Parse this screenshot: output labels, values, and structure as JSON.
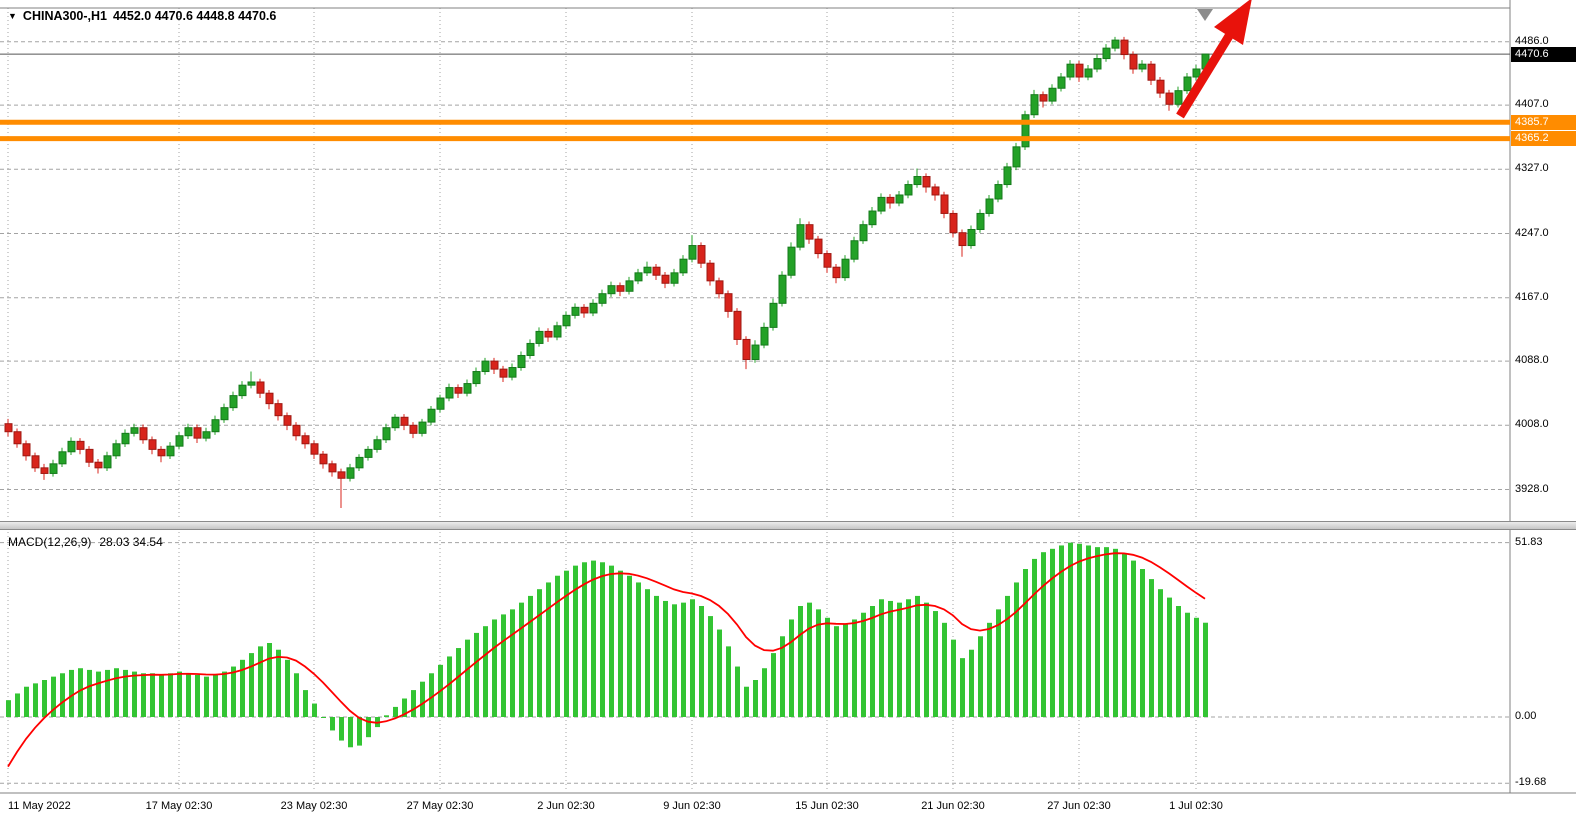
{
  "icons": {
    "symbol_dropdown": "▼"
  },
  "colors": {
    "background": "#FFFFFF",
    "bull": "#23A127",
    "bull_border": "#157A1B",
    "bear": "#D8241C",
    "bear_border": "#9E1812",
    "histogram": "#33C433",
    "signal_line": "#FF0000",
    "level_line": "#FF8C00",
    "grid": "#A3A3A3",
    "frame": "#808080",
    "current_price_tag_bg": "#000000",
    "tag_text": "#FFFFFF",
    "arrow": "#E8120B",
    "shift_marker": "#8C8C8C",
    "text": "#000000"
  },
  "chart_data": [
    {
      "type": "candlestick",
      "symbol_label": "CHINA300-,H1",
      "ohlc_label": "4452.0 4470.6 4448.8 4470.6",
      "open": 4452.0,
      "high": 4470.6,
      "low": 4448.8,
      "close": 4470.6,
      "ylim": [
        3890,
        4528
      ],
      "grid": "on",
      "y_axis_labels": [
        "4486.0",
        "4407.0",
        "4327.0",
        "4247.0",
        "4167.0",
        "4088.0",
        "4008.0",
        "3928.0"
      ],
      "current_price": {
        "value": 4470.6,
        "label": "4470.6"
      },
      "horizontal_lines": [
        {
          "value": 4385.7,
          "label": "4385.7"
        },
        {
          "value": 4365.2,
          "label": "4365.2"
        }
      ],
      "x_ticks": [
        {
          "i": 0,
          "label": "11 May 2022"
        },
        {
          "i": 19,
          "label": "17 May 02:30"
        },
        {
          "i": 34,
          "label": "23 May 02:30"
        },
        {
          "i": 48,
          "label": "27 May 02:30"
        },
        {
          "i": 62,
          "label": "2 Jun 02:30"
        },
        {
          "i": 76,
          "label": "9 Jun 02:30"
        },
        {
          "i": 91,
          "label": "15 Jun 02:30"
        },
        {
          "i": 105,
          "label": "21 Jun 02:30"
        },
        {
          "i": 119,
          "label": "27 Jun 02:30"
        },
        {
          "i": 132,
          "label": "1 Jul 02:30"
        }
      ],
      "candles_ohlc": [
        [
          4010,
          4016,
          3994,
          4000
        ],
        [
          4000,
          4004,
          3980,
          3985
        ],
        [
          3985,
          3989,
          3964,
          3970
        ],
        [
          3970,
          3974,
          3950,
          3955
        ],
        [
          3955,
          3960,
          3940,
          3948
        ],
        [
          3948,
          3965,
          3944,
          3960
        ],
        [
          3960,
          3980,
          3956,
          3975
        ],
        [
          3975,
          3993,
          3971,
          3988
        ],
        [
          3988,
          3992,
          3972,
          3978
        ],
        [
          3978,
          3982,
          3956,
          3962
        ],
        [
          3962,
          3966,
          3948,
          3955
        ],
        [
          3955,
          3975,
          3951,
          3970
        ],
        [
          3970,
          3990,
          3966,
          3985
        ],
        [
          3985,
          4003,
          3981,
          3998
        ],
        [
          3998,
          4010,
          3994,
          4005
        ],
        [
          4005,
          4009,
          3985,
          3990
        ],
        [
          3990,
          3994,
          3972,
          3978
        ],
        [
          3978,
          3982,
          3962,
          3970
        ],
        [
          3970,
          3987,
          3966,
          3982
        ],
        [
          3982,
          4000,
          3978,
          3995
        ],
        [
          3995,
          4010,
          3991,
          4005
        ],
        [
          4005,
          4009,
          3986,
          3992
        ],
        [
          3992,
          4005,
          3988,
          4000
        ],
        [
          4000,
          4020,
          3996,
          4015
        ],
        [
          4015,
          4035,
          4011,
          4030
        ],
        [
          4030,
          4050,
          4026,
          4045
        ],
        [
          4045,
          4063,
          4041,
          4058
        ],
        [
          4058,
          4075,
          4054,
          4062
        ],
        [
          4062,
          4066,
          4042,
          4048
        ],
        [
          4048,
          4052,
          4028,
          4035
        ],
        [
          4035,
          4040,
          4014,
          4020
        ],
        [
          4020,
          4024,
          4002,
          4008
        ],
        [
          4008,
          4012,
          3989,
          3995
        ],
        [
          3995,
          3999,
          3979,
          3985
        ],
        [
          3985,
          3989,
          3966,
          3972
        ],
        [
          3972,
          3976,
          3954,
          3960
        ],
        [
          3960,
          3964,
          3944,
          3950
        ],
        [
          3950,
          3954,
          3905,
          3942
        ],
        [
          3942,
          3960,
          3938,
          3955
        ],
        [
          3955,
          3972,
          3951,
          3968
        ],
        [
          3968,
          3982,
          3964,
          3978
        ],
        [
          3978,
          3995,
          3974,
          3990
        ],
        [
          3990,
          4010,
          3986,
          4005
        ],
        [
          4005,
          4022,
          4001,
          4018
        ],
        [
          4018,
          4022,
          4002,
          4008
        ],
        [
          4008,
          4012,
          3992,
          3998
        ],
        [
          3998,
          4016,
          3994,
          4012
        ],
        [
          4012,
          4032,
          4008,
          4028
        ],
        [
          4028,
          4046,
          4024,
          4042
        ],
        [
          4042,
          4060,
          4038,
          4055
        ],
        [
          4055,
          4059,
          4042,
          4048
        ],
        [
          4048,
          4065,
          4044,
          4060
        ],
        [
          4060,
          4080,
          4056,
          4075
        ],
        [
          4075,
          4092,
          4071,
          4088
        ],
        [
          4088,
          4092,
          4072,
          4078
        ],
        [
          4078,
          4082,
          4062,
          4068
        ],
        [
          4068,
          4085,
          4064,
          4080
        ],
        [
          4080,
          4100,
          4076,
          4095
        ],
        [
          4095,
          4115,
          4091,
          4110
        ],
        [
          4110,
          4130,
          4106,
          4125
        ],
        [
          4125,
          4129,
          4112,
          4118
        ],
        [
          4118,
          4137,
          4114,
          4132
        ],
        [
          4132,
          4150,
          4128,
          4145
        ],
        [
          4145,
          4160,
          4141,
          4155
        ],
        [
          4155,
          4159,
          4142,
          4148
        ],
        [
          4148,
          4165,
          4144,
          4160
        ],
        [
          4160,
          4177,
          4156,
          4172
        ],
        [
          4172,
          4187,
          4168,
          4182
        ],
        [
          4182,
          4186,
          4169,
          4175
        ],
        [
          4175,
          4193,
          4171,
          4188
        ],
        [
          4188,
          4203,
          4184,
          4198
        ],
        [
          4198,
          4212,
          4194,
          4205
        ],
        [
          4205,
          4209,
          4189,
          4195
        ],
        [
          4195,
          4199,
          4179,
          4185
        ],
        [
          4185,
          4203,
          4181,
          4198
        ],
        [
          4198,
          4220,
          4194,
          4215
        ],
        [
          4215,
          4245,
          4211,
          4232
        ],
        [
          4232,
          4236,
          4204,
          4210
        ],
        [
          4210,
          4214,
          4182,
          4188
        ],
        [
          4188,
          4192,
          4166,
          4172
        ],
        [
          4172,
          4176,
          4142,
          4150
        ],
        [
          4150,
          4154,
          4108,
          4115
        ],
        [
          4115,
          4119,
          4078,
          4090
        ],
        [
          4090,
          4114,
          4086,
          4108
        ],
        [
          4108,
          4136,
          4104,
          4130
        ],
        [
          4130,
          4166,
          4126,
          4160
        ],
        [
          4160,
          4200,
          4156,
          4195
        ],
        [
          4195,
          4236,
          4191,
          4230
        ],
        [
          4230,
          4266,
          4226,
          4258
        ],
        [
          4258,
          4262,
          4234,
          4240
        ],
        [
          4240,
          4244,
          4216,
          4222
        ],
        [
          4222,
          4226,
          4198,
          4205
        ],
        [
          4205,
          4209,
          4185,
          4192
        ],
        [
          4192,
          4220,
          4188,
          4215
        ],
        [
          4215,
          4243,
          4211,
          4238
        ],
        [
          4238,
          4263,
          4234,
          4258
        ],
        [
          4258,
          4280,
          4254,
          4275
        ],
        [
          4275,
          4297,
          4271,
          4292
        ],
        [
          4292,
          4296,
          4278,
          4285
        ],
        [
          4285,
          4300,
          4281,
          4295
        ],
        [
          4295,
          4313,
          4291,
          4308
        ],
        [
          4308,
          4328,
          4304,
          4318
        ],
        [
          4318,
          4322,
          4298,
          4305
        ],
        [
          4305,
          4309,
          4288,
          4295
        ],
        [
          4295,
          4299,
          4266,
          4272
        ],
        [
          4272,
          4276,
          4242,
          4248
        ],
        [
          4248,
          4252,
          4218,
          4232
        ],
        [
          4232,
          4257,
          4228,
          4252
        ],
        [
          4252,
          4277,
          4248,
          4272
        ],
        [
          4272,
          4295,
          4268,
          4290
        ],
        [
          4290,
          4313,
          4286,
          4308
        ],
        [
          4308,
          4335,
          4304,
          4330
        ],
        [
          4330,
          4360,
          4326,
          4355
        ],
        [
          4355,
          4400,
          4351,
          4395
        ],
        [
          4395,
          4426,
          4391,
          4420
        ],
        [
          4420,
          4424,
          4404,
          4412
        ],
        [
          4412,
          4433,
          4408,
          4428
        ],
        [
          4428,
          4447,
          4424,
          4442
        ],
        [
          4442,
          4463,
          4438,
          4458
        ],
        [
          4458,
          4462,
          4436,
          4442
        ],
        [
          4442,
          4457,
          4438,
          4452
        ],
        [
          4452,
          4470,
          4448,
          4465
        ],
        [
          4465,
          4483,
          4461,
          4478
        ],
        [
          4478,
          4492,
          4474,
          4488
        ],
        [
          4488,
          4492,
          4464,
          4470
        ],
        [
          4470,
          4474,
          4446,
          4452
        ],
        [
          4452,
          4463,
          4448,
          4458
        ],
        [
          4458,
          4462,
          4432,
          4438
        ],
        [
          4438,
          4442,
          4416,
          4422
        ],
        [
          4422,
          4426,
          4400,
          4408
        ],
        [
          4408,
          4430,
          4404,
          4425
        ],
        [
          4425,
          4447,
          4421,
          4442
        ],
        [
          4442,
          4457,
          4438,
          4452
        ],
        [
          4452,
          4470.6,
          4448.8,
          4470.6
        ]
      ]
    },
    {
      "type": "bar",
      "name_label": "MACD(12,26,9)",
      "values_label": "28.03 34.54",
      "macd_value": 28.03,
      "signal_value": 34.54,
      "ylim": [
        -22,
        55
      ],
      "y_axis_labels": [
        "51.83",
        "0.00",
        "-19.68"
      ],
      "signal_period": 9,
      "signal_seed": -19.68,
      "histogram": [
        5,
        7,
        9,
        10,
        11,
        12,
        13,
        14,
        14.5,
        14,
        13.5,
        14,
        14.5,
        14,
        13.5,
        13,
        13,
        12.5,
        13,
        13.5,
        13,
        12.5,
        12,
        12.5,
        13.5,
        15,
        17,
        19,
        21,
        22,
        20,
        17,
        13,
        8,
        4,
        0,
        -4,
        -7,
        -9,
        -8.5,
        -6,
        -3,
        0.5,
        3,
        5.5,
        8,
        10.5,
        13,
        15.5,
        18,
        20.5,
        23,
        25,
        27,
        29,
        30.5,
        32,
        34,
        36,
        38,
        40,
        42,
        43.5,
        45,
        46,
        46.5,
        46,
        45,
        43.5,
        42,
        40,
        38,
        36,
        34.5,
        33.5,
        34,
        35,
        33,
        30,
        26,
        21,
        15,
        9,
        11,
        14.5,
        19,
        24,
        29,
        33,
        34,
        32,
        29.5,
        27,
        27.5,
        29,
        31,
        33,
        35,
        34.5,
        34,
        35,
        36,
        34,
        31.5,
        28,
        23,
        17.5,
        20,
        24,
        28,
        32,
        36,
        40,
        44,
        47,
        49,
        50,
        51,
        51.83,
        51.5,
        51,
        50.5,
        50.5,
        50,
        48.5,
        46.5,
        44,
        41,
        38,
        35.5,
        33,
        31,
        29.5,
        28.03
      ]
    }
  ]
}
